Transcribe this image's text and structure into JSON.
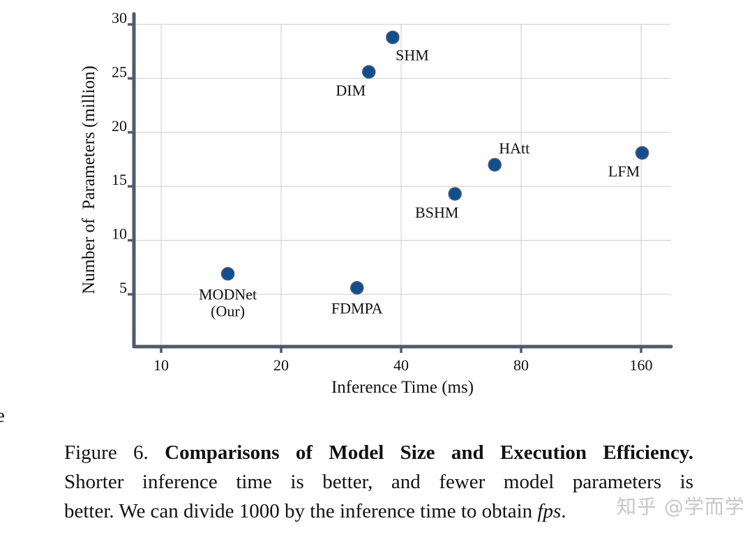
{
  "chart_data": {
    "type": "scatter",
    "title": "",
    "xlabel": "Inference Time (ms)",
    "ylabel": "Number of  Parameters (million)",
    "x_scale": "log2",
    "xlim": [
      8.5,
      180
    ],
    "ylim": [
      0,
      31
    ],
    "x_ticks": [
      10,
      20,
      40,
      80,
      160
    ],
    "x_tick_labels": [
      "10",
      "20",
      "40",
      "80",
      "160"
    ],
    "y_ticks": [
      5,
      10,
      15,
      20,
      25,
      30
    ],
    "y_tick_labels": [
      "5",
      "10",
      "15",
      "20",
      "25",
      "30"
    ],
    "grid": true,
    "legend": "none",
    "marker_color": "#0f4f8f",
    "marker_edge_color": "#4a5a78",
    "axis_color": "#4e5a70",
    "grid_color": "#cccccc",
    "points": [
      {
        "name": "MODNet",
        "sublabel": "(Our)",
        "x": 14.7,
        "y": 6.9,
        "label_pos": "below"
      },
      {
        "name": "FDMPA",
        "x": 31.0,
        "y": 5.6,
        "label_pos": "below"
      },
      {
        "name": "DIM",
        "x": 33.2,
        "y": 25.6,
        "label_pos": "below-left"
      },
      {
        "name": "SHM",
        "x": 38.1,
        "y": 28.8,
        "label_pos": "below-right"
      },
      {
        "name": "BSHM",
        "x": 54.6,
        "y": 14.3,
        "label_pos": "below-left"
      },
      {
        "name": "HAtt",
        "x": 68.7,
        "y": 17.0,
        "label_pos": "above-right"
      },
      {
        "name": "LFM",
        "x": 161.0,
        "y": 18.1,
        "label_pos": "below-left"
      }
    ]
  },
  "caption": {
    "figure_label": "Figure 6.",
    "bold_title": "Comparisons of Model Size and Execution Efficiency.",
    "line2": "Shorter inference time is better, and fewer model parameters is",
    "line3_prefix": "better. We can divide 1000 by the inference time to obtain ",
    "line3_math": "fps",
    "line3_suffix": "."
  },
  "edge_fragment": "e",
  "watermark": "知乎 @学而学"
}
